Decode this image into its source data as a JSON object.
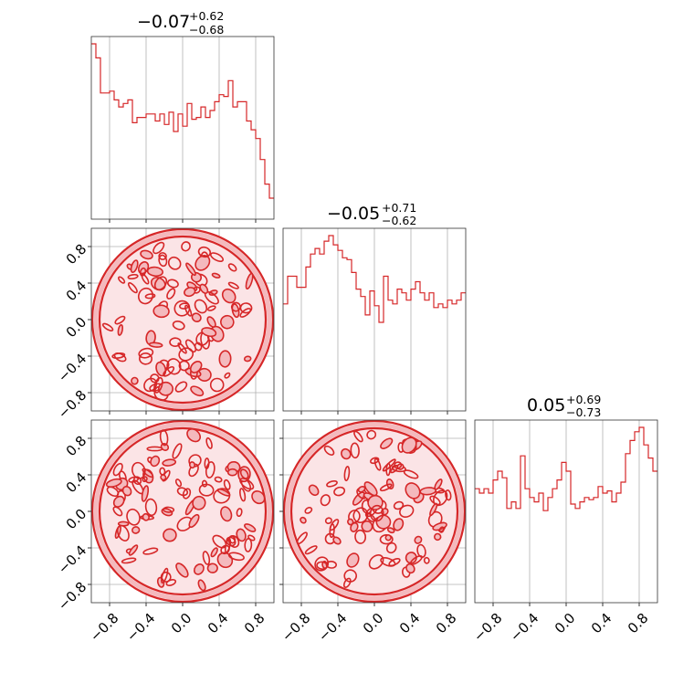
{
  "chart_data": {
    "type": "corner",
    "series_color": "#d62728",
    "fill_color": "#f4b9bd",
    "grid": true,
    "range": [
      -1,
      1
    ],
    "tick_values": [
      -0.8,
      -0.4,
      0.0,
      0.4,
      0.8
    ],
    "tick_labels": [
      "−0.8",
      "−0.4",
      "0.0",
      "0.4",
      "0.8"
    ],
    "parameters": [
      {
        "median": "−0.07",
        "plus": "+0.62",
        "minus": "−0.68"
      },
      {
        "median": "−0.05",
        "plus": "+0.71",
        "minus": "−0.62"
      },
      {
        "median": "0.05",
        "plus": "+0.69",
        "minus": "−0.73"
      }
    ],
    "histograms": [
      {
        "bin_count": 40,
        "values": [
          1.0,
          0.92,
          0.72,
          0.72,
          0.73,
          0.68,
          0.64,
          0.66,
          0.68,
          0.55,
          0.58,
          0.58,
          0.6,
          0.6,
          0.56,
          0.6,
          0.54,
          0.61,
          0.5,
          0.6,
          0.53,
          0.66,
          0.57,
          0.58,
          0.64,
          0.58,
          0.62,
          0.67,
          0.71,
          0.7,
          0.79,
          0.64,
          0.67,
          0.67,
          0.56,
          0.51,
          0.46,
          0.34,
          0.2,
          0.12
        ]
      },
      {
        "bin_count": 40,
        "values": [
          0.58,
          0.73,
          0.73,
          0.67,
          0.67,
          0.78,
          0.85,
          0.88,
          0.85,
          0.92,
          0.95,
          0.9,
          0.87,
          0.83,
          0.82,
          0.75,
          0.66,
          0.62,
          0.52,
          0.65,
          0.57,
          0.48,
          0.73,
          0.6,
          0.58,
          0.66,
          0.64,
          0.6,
          0.66,
          0.7,
          0.64,
          0.6,
          0.64,
          0.56,
          0.58,
          0.56,
          0.6,
          0.58,
          0.6,
          0.64
        ]
      },
      {
        "bin_count": 40,
        "values": [
          0.52,
          0.5,
          0.52,
          0.5,
          0.56,
          0.6,
          0.57,
          0.43,
          0.46,
          0.43,
          0.67,
          0.52,
          0.48,
          0.46,
          0.5,
          0.42,
          0.48,
          0.52,
          0.56,
          0.64,
          0.6,
          0.45,
          0.43,
          0.46,
          0.48,
          0.47,
          0.48,
          0.53,
          0.5,
          0.51,
          0.46,
          0.5,
          0.55,
          0.68,
          0.74,
          0.78,
          0.8,
          0.72,
          0.66,
          0.6
        ]
      }
    ],
    "pairs": [
      {
        "x_param": 0,
        "y_param": 1,
        "support": "unit-disk"
      },
      {
        "x_param": 0,
        "y_param": 2,
        "support": "unit-disk"
      },
      {
        "x_param": 1,
        "y_param": 2,
        "support": "unit-disk"
      }
    ]
  }
}
